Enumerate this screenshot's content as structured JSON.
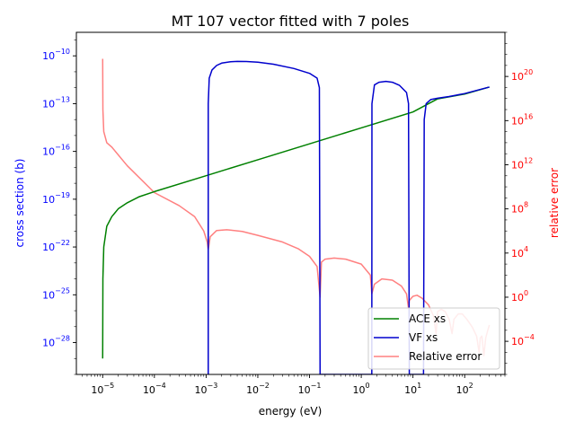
{
  "chart_data": {
    "type": "line",
    "title": "MT 107 vector fitted with 7 poles",
    "xlabel": "energy (eV)",
    "ylabel_left": "cross section (b)",
    "ylabel_right": "relative error",
    "x_scale": "log",
    "y_left_scale": "log",
    "y_right_scale": "log",
    "xlim": [
      3.1e-06,
      600
    ],
    "ylim_left": [
      1e-30,
      3e-09
    ],
    "ylim_right": [
      1e-07,
      1e+24
    ],
    "grid": false,
    "legend_position": "lower-right",
    "x_ticks": [
      {
        "value": 1e-05,
        "base": "10",
        "exp": "−5"
      },
      {
        "value": 0.0001,
        "base": "10",
        "exp": "−4"
      },
      {
        "value": 0.001,
        "base": "10",
        "exp": "−3"
      },
      {
        "value": 0.01,
        "base": "10",
        "exp": "−2"
      },
      {
        "value": 0.1,
        "base": "10",
        "exp": "−1"
      },
      {
        "value": 1.0,
        "base": "10",
        "exp": "0"
      },
      {
        "value": 10.0,
        "base": "10",
        "exp": "1"
      },
      {
        "value": 100.0,
        "base": "10",
        "exp": "2"
      }
    ],
    "y_left_ticks": [
      {
        "value": 1e-10,
        "base": "10",
        "exp": "−10"
      },
      {
        "value": 1e-13,
        "base": "10",
        "exp": "−13"
      },
      {
        "value": 1e-16,
        "base": "10",
        "exp": "−16"
      },
      {
        "value": 1e-19,
        "base": "10",
        "exp": "−19"
      },
      {
        "value": 1e-22,
        "base": "10",
        "exp": "−22"
      },
      {
        "value": 1e-25,
        "base": "10",
        "exp": "−25"
      },
      {
        "value": 1e-28,
        "base": "10",
        "exp": "−28"
      }
    ],
    "y_right_ticks": [
      {
        "value": 1e+20,
        "base": "10",
        "exp": "20"
      },
      {
        "value": 1e+16,
        "base": "10",
        "exp": "16"
      },
      {
        "value": 1000000000000.0,
        "base": "10",
        "exp": "12"
      },
      {
        "value": 100000000.0,
        "base": "10",
        "exp": "8"
      },
      {
        "value": 10000.0,
        "base": "10",
        "exp": "4"
      },
      {
        "value": 1.0,
        "base": "10",
        "exp": "0"
      },
      {
        "value": 0.0001,
        "base": "10",
        "exp": "−4"
      }
    ],
    "series": [
      {
        "name": "ACE xs",
        "axis": "left",
        "color": "#008000",
        "points": [
          [
            1e-05,
            1e-29
          ],
          [
            1.01e-05,
            1e-24
          ],
          [
            1.05e-05,
            1e-22
          ],
          [
            1.2e-05,
            2e-21
          ],
          [
            1.5e-05,
            8e-21
          ],
          [
            2e-05,
            2.5e-20
          ],
          [
            3e-05,
            6e-20
          ],
          [
            5e-05,
            1.4e-19
          ],
          [
            0.0001,
            3e-19
          ],
          [
            0.001,
            3e-18
          ],
          [
            0.01,
            3e-17
          ],
          [
            0.1,
            3e-16
          ],
          [
            1,
            3e-15
          ],
          [
            10,
            3e-14
          ],
          [
            30,
            2e-13
          ],
          [
            100,
            4e-13
          ],
          [
            300,
            1.1e-12
          ]
        ]
      },
      {
        "name": "VF xs",
        "axis": "left",
        "color": "#0000cd",
        "points": [
          [
            0.0011,
            1e-30
          ],
          [
            0.0011,
            1e-13
          ],
          [
            0.00115,
            4e-12
          ],
          [
            0.0013,
            1.3e-11
          ],
          [
            0.0016,
            2.5e-11
          ],
          [
            0.002,
            3.5e-11
          ],
          [
            0.003,
            4.3e-11
          ],
          [
            0.004,
            4.5e-11
          ],
          [
            0.006,
            4.4e-11
          ],
          [
            0.01,
            4e-11
          ],
          [
            0.02,
            3e-11
          ],
          [
            0.05,
            1.6e-11
          ],
          [
            0.1,
            8e-12
          ],
          [
            0.14,
            4e-12
          ],
          [
            0.155,
            1e-12
          ],
          [
            0.16,
            1e-30
          ],
          [
            1.6,
            1e-30
          ],
          [
            1.61,
            1e-13
          ],
          [
            1.8,
            1.5e-12
          ],
          [
            2.2,
            2.2e-12
          ],
          [
            3,
            2.5e-12
          ],
          [
            4,
            2.2e-12
          ],
          [
            5.5,
            1.4e-12
          ],
          [
            7.5,
            5e-13
          ],
          [
            8.2,
            1e-13
          ],
          [
            8.5,
            1e-30
          ],
          [
            16,
            1e-30
          ],
          [
            16.5,
            1e-14
          ],
          [
            18,
            1e-13
          ],
          [
            22,
            1.8e-13
          ],
          [
            30,
            2.2e-13
          ],
          [
            50,
            2.8e-13
          ],
          [
            100,
            4.3e-13
          ],
          [
            300,
            1.1e-12
          ]
        ]
      },
      {
        "name": "Relative error",
        "axis": "right",
        "color": "#ff8080",
        "points": [
          [
            1e-05,
            4e+21
          ],
          [
            1.01e-05,
            1e+17
          ],
          [
            1.05e-05,
            1000000000000000.0
          ],
          [
            1.2e-05,
            100000000000000.0
          ],
          [
            1.5e-05,
            40000000000000.0
          ],
          [
            3e-05,
            800000000000.0
          ],
          [
            0.0001,
            3000000000.0
          ],
          [
            0.0003,
            200000000.0
          ],
          [
            0.0006,
            20000000.0
          ],
          [
            0.0009,
            1000000.0
          ],
          [
            0.00105,
            100000.0
          ],
          [
            0.0011,
            20000.0
          ],
          [
            0.0012,
            300000.0
          ],
          [
            0.0016,
            1100000.0
          ],
          [
            0.0025,
            1300000.0
          ],
          [
            0.005,
            900000.0
          ],
          [
            0.01,
            400000.0
          ],
          [
            0.03,
            100000.0
          ],
          [
            0.06,
            25000.0
          ],
          [
            0.1,
            5000.0
          ],
          [
            0.14,
            600.0
          ],
          [
            0.16,
            1
          ],
          [
            0.17,
            1500.0
          ],
          [
            0.2,
            2800.0
          ],
          [
            0.3,
            3500.0
          ],
          [
            0.5,
            2800.0
          ],
          [
            1,
            1000.0
          ],
          [
            1.5,
            100.0
          ],
          [
            1.6,
            2
          ],
          [
            1.8,
            15
          ],
          [
            2.5,
            45
          ],
          [
            4,
            35
          ],
          [
            6,
            10
          ],
          [
            7.5,
            2
          ],
          [
            8.2,
            0.1
          ],
          [
            8.5,
            0.5
          ],
          [
            10,
            1.2
          ],
          [
            12,
            1.5
          ],
          [
            15,
            0.8
          ],
          [
            20,
            0.2
          ],
          [
            25,
            0.02
          ],
          [
            28,
            0.0005
          ],
          [
            30,
            0.05
          ],
          [
            35,
            0.08
          ],
          [
            42,
            0.05
          ],
          [
            50,
            0.01
          ],
          [
            57,
            0.0005
          ],
          [
            62,
            0.01
          ],
          [
            75,
            0.03
          ],
          [
            90,
            0.03
          ],
          [
            110,
            0.01
          ],
          [
            140,
            0.002
          ],
          [
            170,
            0.0003
          ],
          [
            190,
            1e-05
          ],
          [
            200,
            0.0002
          ],
          [
            215,
            0.0003
          ],
          [
            235,
            5e-06
          ],
          [
            255,
            0.0002
          ],
          [
            280,
            0.001
          ],
          [
            300,
            0.003
          ]
        ]
      }
    ]
  }
}
